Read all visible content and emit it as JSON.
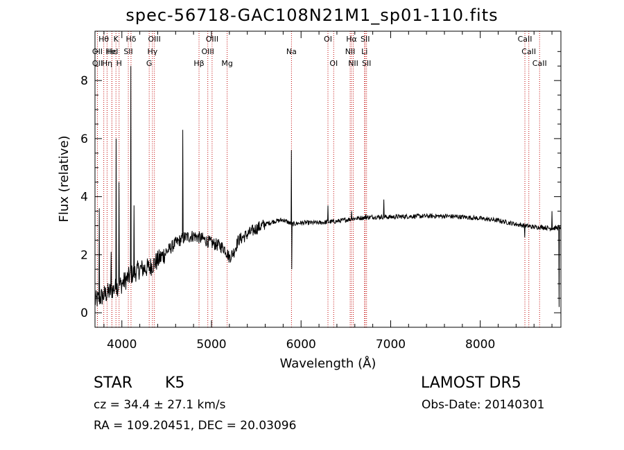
{
  "title": "spec-56718-GAC108N21M1_sp01-110.fits",
  "info": {
    "object_type": "STAR",
    "object_class": "K5",
    "survey": "LAMOST DR5",
    "redshift": "cz = 34.4 ± 27.1 km/s",
    "obs_date": "Obs-Date: 20140301",
    "coords": "RA = 109.20451, DEC =  20.03096"
  },
  "colors": {
    "spectrum": "#000000",
    "line_marker": "#c00000",
    "axes": "#000000"
  },
  "chart_data": {
    "type": "line",
    "xlabel": "Wavelength (Å)",
    "ylabel": "Flux (relative)",
    "xlim": [
      3700,
      8900
    ],
    "ylim": [
      -0.5,
      9.7
    ],
    "xticks": [
      4000,
      5000,
      6000,
      7000,
      8000
    ],
    "yticks": [
      0,
      2,
      4,
      6,
      8
    ],
    "continuum": [
      [
        3700,
        0.4
      ],
      [
        3800,
        0.6
      ],
      [
        3900,
        0.8
      ],
      [
        4000,
        1.0
      ],
      [
        4100,
        1.3
      ],
      [
        4200,
        1.5
      ],
      [
        4300,
        1.55
      ],
      [
        4400,
        1.8
      ],
      [
        4500,
        2.1
      ],
      [
        4600,
        2.4
      ],
      [
        4700,
        2.6
      ],
      [
        4800,
        2.65
      ],
      [
        4900,
        2.55
      ],
      [
        5000,
        2.4
      ],
      [
        5100,
        2.3
      ],
      [
        5150,
        2.2
      ],
      [
        5200,
        1.9
      ],
      [
        5250,
        2.1
      ],
      [
        5300,
        2.5
      ],
      [
        5400,
        2.7
      ],
      [
        5500,
        2.9
      ],
      [
        5600,
        3.05
      ],
      [
        5700,
        3.15
      ],
      [
        5800,
        3.2
      ],
      [
        5900,
        3.05
      ],
      [
        6000,
        3.1
      ],
      [
        6200,
        3.1
      ],
      [
        6400,
        3.15
      ],
      [
        6600,
        3.25
      ],
      [
        6800,
        3.3
      ],
      [
        7000,
        3.3
      ],
      [
        7200,
        3.32
      ],
      [
        7400,
        3.33
      ],
      [
        7600,
        3.33
      ],
      [
        7800,
        3.3
      ],
      [
        8000,
        3.25
      ],
      [
        8200,
        3.18
      ],
      [
        8400,
        3.05
      ],
      [
        8600,
        2.95
      ],
      [
        8700,
        2.95
      ],
      [
        8800,
        2.9
      ],
      [
        8900,
        2.95
      ]
    ],
    "spikes": [
      [
        3748,
        3.6
      ],
      [
        3880,
        2.1
      ],
      [
        3935,
        6.0
      ],
      [
        3968,
        4.5
      ],
      [
        4101,
        8.5
      ],
      [
        4135,
        3.7
      ],
      [
        4680,
        6.3
      ],
      [
        4662,
        5.7
      ],
      [
        5893,
        5.6
      ],
      [
        5895,
        1.5
      ],
      [
        6300,
        3.7
      ],
      [
        6563,
        3.5
      ],
      [
        6725,
        3.4
      ],
      [
        6925,
        3.9
      ],
      [
        8495,
        2.6
      ],
      [
        8542,
        2.65
      ],
      [
        8662,
        2.75
      ],
      [
        8800,
        3.5
      ],
      [
        8870,
        1.3
      ],
      [
        8880,
        0.2
      ]
    ],
    "line_markers": [
      {
        "label": "Hθ",
        "x": 3798,
        "row": 0
      },
      {
        "label": "OII",
        "x": 3727,
        "row": 1
      },
      {
        "label": "OII",
        "x": 3727,
        "row": 2
      },
      {
        "label": "Hε",
        "x": 3889,
        "row": 1
      },
      {
        "label": "Hη",
        "x": 3835,
        "row": 2
      },
      {
        "label": "K",
        "x": 3934,
        "row": 0
      },
      {
        "label": "HeI",
        "x": 3889,
        "row": 1
      },
      {
        "label": "H",
        "x": 3969,
        "row": 2
      },
      {
        "label": "Hδ",
        "x": 4102,
        "row": 0
      },
      {
        "label": "SII",
        "x": 4072,
        "row": 1
      },
      {
        "label": "OIII",
        "x": 4363,
        "row": 0
      },
      {
        "label": "Hγ",
        "x": 4341,
        "row": 1
      },
      {
        "label": "G",
        "x": 4305,
        "row": 2
      },
      {
        "label": "OIII",
        "x": 5007,
        "row": 0
      },
      {
        "label": "OIII",
        "x": 4959,
        "row": 1
      },
      {
        "label": "Hβ",
        "x": 4861,
        "row": 2
      },
      {
        "label": "Mg",
        "x": 5175,
        "row": 2
      },
      {
        "label": "Na",
        "x": 5893,
        "row": 1
      },
      {
        "label": "OI",
        "x": 6300,
        "row": 0
      },
      {
        "label": "OI",
        "x": 6364,
        "row": 2
      },
      {
        "label": "Hα",
        "x": 6563,
        "row": 0
      },
      {
        "label": "NII",
        "x": 6548,
        "row": 1
      },
      {
        "label": "NII",
        "x": 6583,
        "row": 2
      },
      {
        "label": "SII",
        "x": 6716,
        "row": 0
      },
      {
        "label": "Li",
        "x": 6708,
        "row": 1
      },
      {
        "label": "SII",
        "x": 6731,
        "row": 2
      },
      {
        "label": "CaII",
        "x": 8498,
        "row": 0
      },
      {
        "label": "CaII",
        "x": 8542,
        "row": 1
      },
      {
        "label": "CaII",
        "x": 8662,
        "row": 2
      }
    ]
  }
}
